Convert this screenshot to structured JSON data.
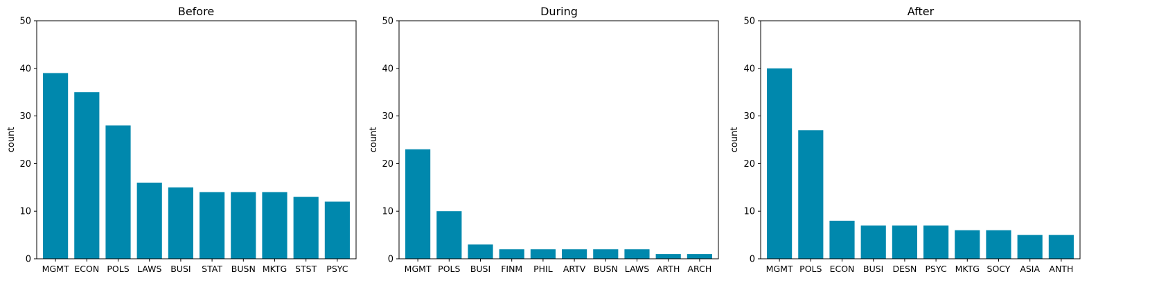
{
  "style": {
    "bar_color": "#0088ad",
    "axis_color": "#000000",
    "background": "#ffffff"
  },
  "chart_data": [
    {
      "type": "bar",
      "title": "Before",
      "xlabel": "",
      "ylabel": "count",
      "ylim": [
        0,
        50
      ],
      "yticks": [
        0,
        10,
        20,
        30,
        40,
        50
      ],
      "grid": false,
      "categories": [
        "MGMT",
        "ECON",
        "POLS",
        "LAWS",
        "BUSI",
        "STAT",
        "BUSN",
        "MKTG",
        "STST",
        "PSYC"
      ],
      "values": [
        39,
        35,
        28,
        16,
        15,
        14,
        14,
        14,
        13,
        12
      ]
    },
    {
      "type": "bar",
      "title": "During",
      "xlabel": "",
      "ylabel": "count",
      "ylim": [
        0,
        50
      ],
      "yticks": [
        0,
        10,
        20,
        30,
        40,
        50
      ],
      "grid": false,
      "categories": [
        "MGMT",
        "POLS",
        "BUSI",
        "FINM",
        "PHIL",
        "ARTV",
        "BUSN",
        "LAWS",
        "ARTH",
        "ARCH"
      ],
      "values": [
        23,
        10,
        3,
        2,
        2,
        2,
        2,
        2,
        1,
        1
      ]
    },
    {
      "type": "bar",
      "title": "After",
      "xlabel": "",
      "ylabel": "count",
      "ylim": [
        0,
        50
      ],
      "yticks": [
        0,
        10,
        20,
        30,
        40,
        50
      ],
      "grid": false,
      "categories": [
        "MGMT",
        "POLS",
        "ECON",
        "BUSI",
        "DESN",
        "PSYC",
        "MKTG",
        "SOCY",
        "ASIA",
        "ANTH"
      ],
      "values": [
        40,
        27,
        8,
        7,
        7,
        7,
        6,
        6,
        5,
        5
      ]
    }
  ]
}
